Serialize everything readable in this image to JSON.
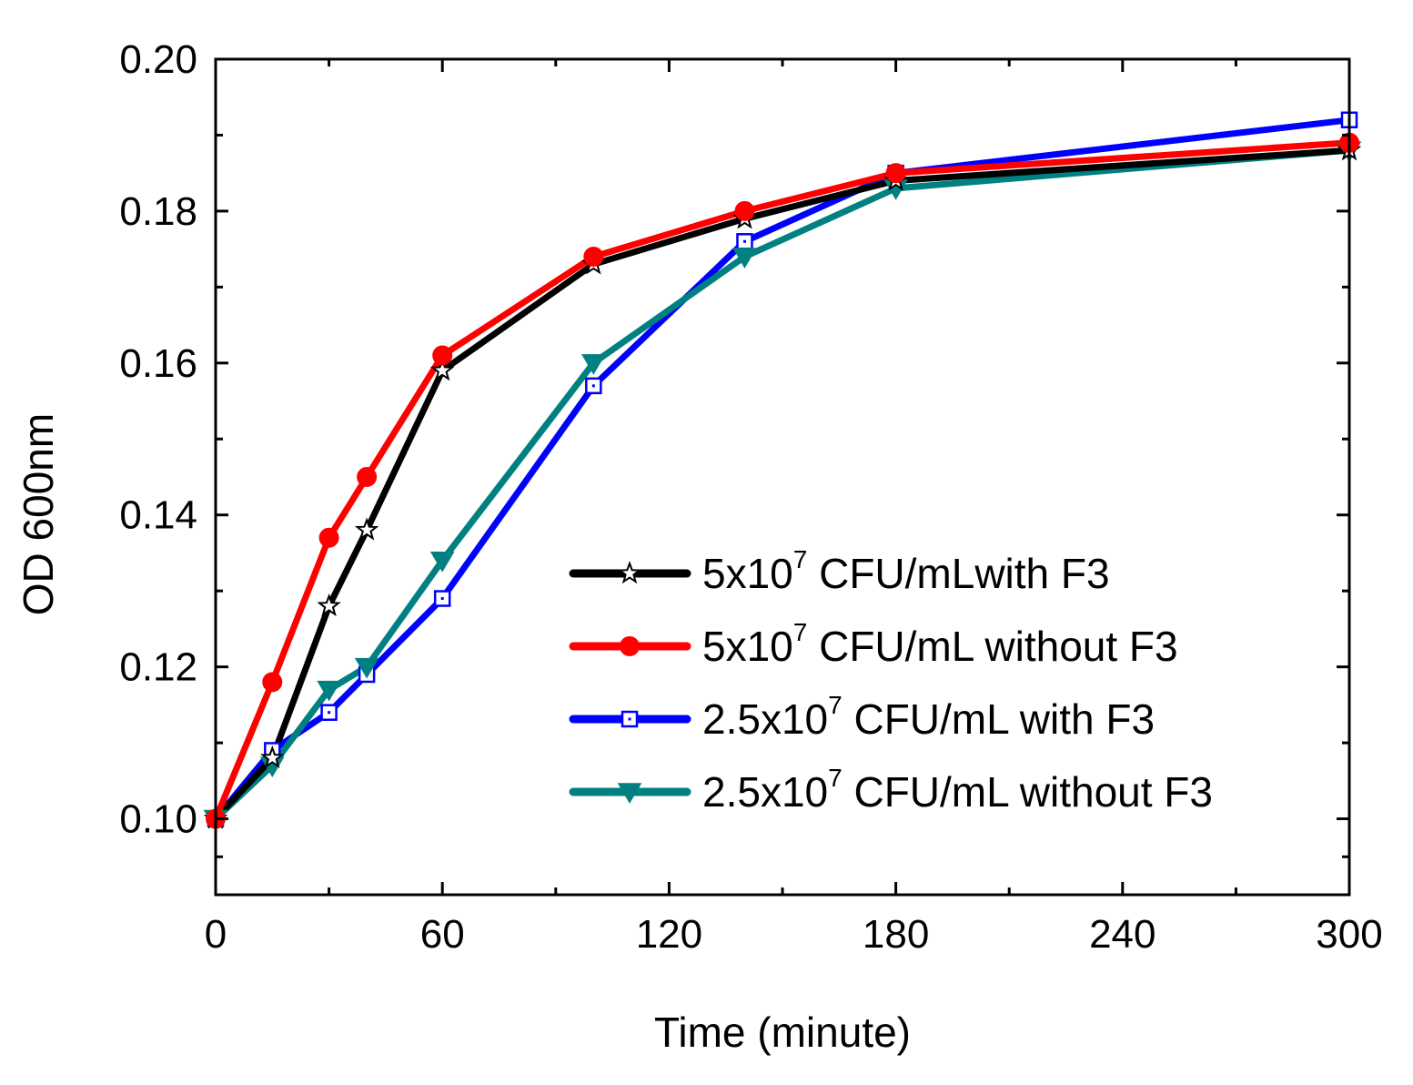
{
  "chart_data": {
    "type": "line",
    "title": "",
    "xlabel": "Time (minute)",
    "ylabel": "OD 600nm",
    "xlim": [
      0,
      300
    ],
    "ylim": [
      0.09,
      0.2
    ],
    "xticks": [
      0,
      60,
      120,
      180,
      240,
      300
    ],
    "xtick_labels": [
      "0",
      "60",
      "120",
      "180",
      "240",
      "300"
    ],
    "yticks": [
      0.1,
      0.12,
      0.14,
      0.16,
      0.18,
      0.2
    ],
    "ytick_labels": [
      "0.10",
      "0.12",
      "0.14",
      "0.16",
      "0.18",
      "0.20"
    ],
    "grid": false,
    "legend_position": "center-right",
    "series": [
      {
        "name": "5x10^7 CFU/mLwith F3",
        "label_main": "5x10",
        "label_exp": "7",
        "label_rest": " CFU/mLwith F3",
        "color": "#000000",
        "marker": "star-open",
        "x": [
          0,
          15,
          30,
          40,
          60,
          100,
          140,
          180,
          300
        ],
        "y": [
          0.1,
          0.108,
          0.128,
          0.138,
          0.159,
          0.173,
          0.179,
          0.184,
          0.188
        ]
      },
      {
        "name": "5x10^7 CFU/mL without F3",
        "label_main": "5x10",
        "label_exp": "7",
        "label_rest": " CFU/mL without F3",
        "color": "#ff0000",
        "marker": "circle-filled",
        "x": [
          0,
          15,
          30,
          40,
          60,
          100,
          140,
          180,
          300
        ],
        "y": [
          0.1,
          0.118,
          0.137,
          0.145,
          0.161,
          0.174,
          0.18,
          0.185,
          0.189
        ]
      },
      {
        "name": "2.5x10^7 CFU/mL with F3",
        "label_main": "2.5x10",
        "label_exp": "7",
        "label_rest": " CFU/mL with F3",
        "color": "#0000ff",
        "marker": "square-open",
        "x": [
          0,
          15,
          30,
          40,
          60,
          100,
          140,
          180,
          300
        ],
        "y": [
          0.1,
          0.109,
          0.114,
          0.119,
          0.129,
          0.157,
          0.176,
          0.185,
          0.192
        ]
      },
      {
        "name": "2.5x10^7 CFU/mL without F3",
        "label_main": "2.5x10",
        "label_exp": "7",
        "label_rest": " CFU/mL without F3",
        "color": "#008080",
        "marker": "triangle-down-filled",
        "x": [
          0,
          15,
          30,
          40,
          60,
          100,
          140,
          180,
          300
        ],
        "y": [
          0.1,
          0.107,
          0.117,
          0.12,
          0.134,
          0.16,
          0.174,
          0.183,
          0.188
        ]
      }
    ]
  }
}
